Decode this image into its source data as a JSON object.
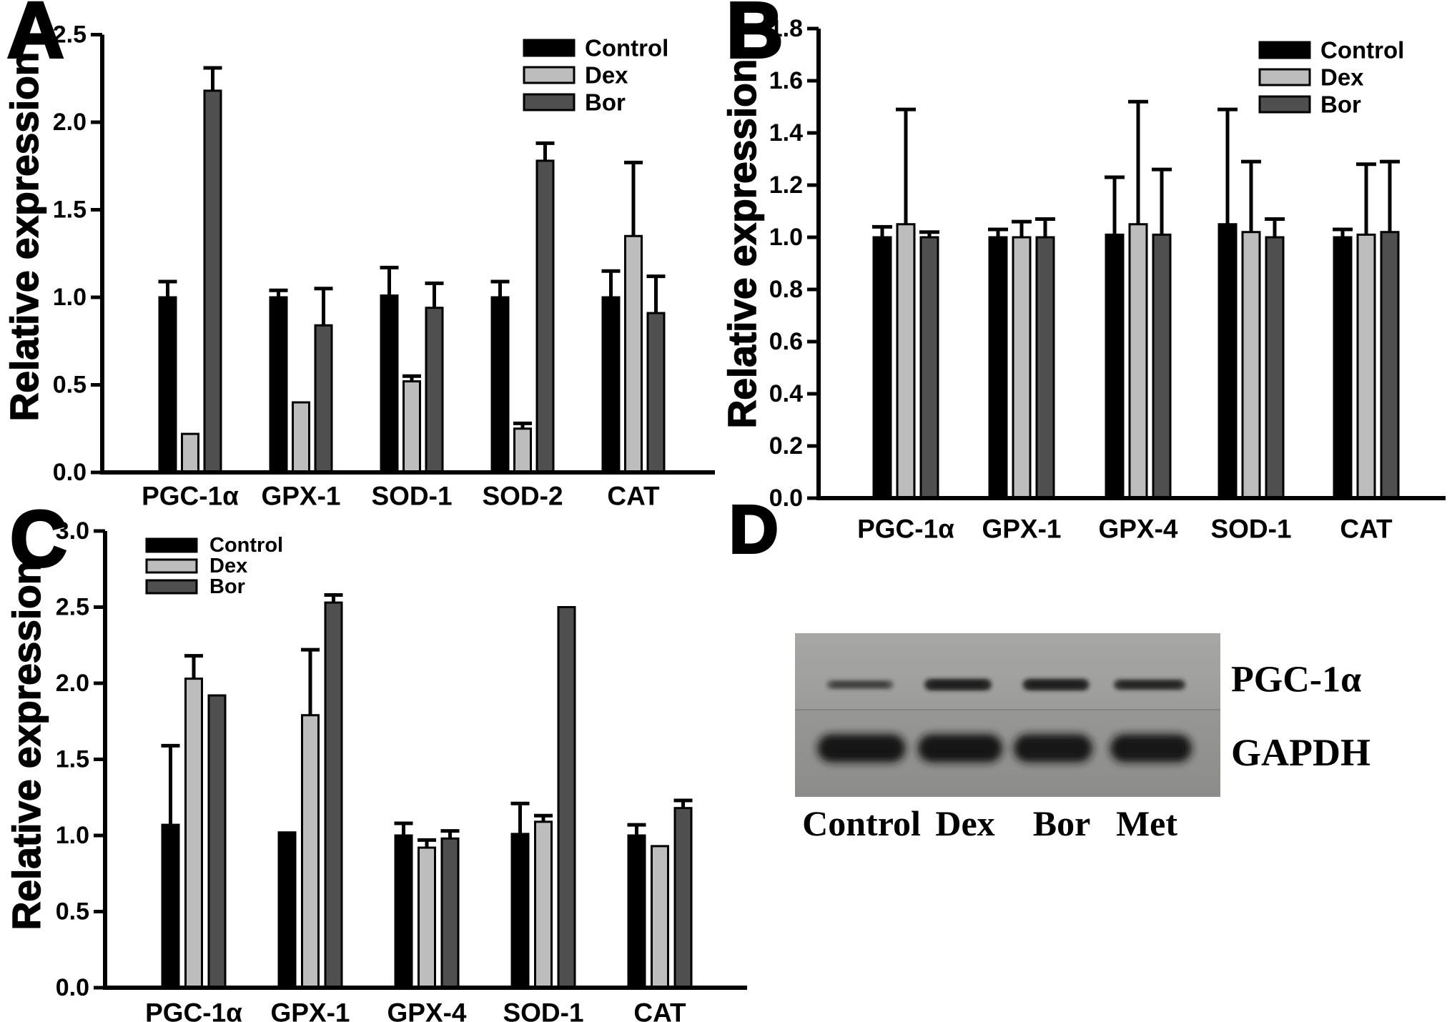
{
  "figure": {
    "panels": [
      {
        "label": "A"
      },
      {
        "label": "B"
      },
      {
        "label": "C"
      },
      {
        "label": "D"
      }
    ],
    "series_colors": {
      "Control": "#000000",
      "Dex": "#bdbdbd",
      "Bor": "#4f4f4f"
    }
  },
  "chart_data": [
    {
      "panel": "A",
      "type": "bar",
      "title": "",
      "xlabel": "",
      "ylabel": "Relative expression",
      "ylim": [
        0,
        2.5
      ],
      "ytick_step": 0.5,
      "grid": false,
      "legend_position": "top-right",
      "categories": [
        "PGC-1α",
        "GPX-1",
        "SOD-1",
        "SOD-2",
        "CAT"
      ],
      "series": [
        {
          "name": "Control",
          "color": "#000000",
          "values": [
            1.0,
            1.0,
            1.01,
            1.0,
            1.0
          ],
          "errors": [
            0.09,
            0.04,
            0.16,
            0.09,
            0.15
          ]
        },
        {
          "name": "Dex",
          "color": "#bdbdbd",
          "values": [
            0.22,
            0.4,
            0.52,
            0.25,
            1.35
          ],
          "errors": [
            0,
            0,
            0.03,
            0.03,
            0.42
          ]
        },
        {
          "name": "Bor",
          "color": "#4f4f4f",
          "values": [
            2.18,
            0.84,
            0.94,
            1.78,
            0.91
          ],
          "errors": [
            0.13,
            0.21,
            0.14,
            0.1,
            0.21
          ]
        }
      ]
    },
    {
      "panel": "B",
      "type": "bar",
      "title": "",
      "xlabel": "",
      "ylabel": "Relative expression",
      "ylim": [
        0,
        1.8
      ],
      "ytick_step": 0.2,
      "grid": false,
      "legend_position": "top-right",
      "categories": [
        "PGC-1α",
        "GPX-1",
        "GPX-4",
        "SOD-1",
        "CAT"
      ],
      "series": [
        {
          "name": "Control",
          "color": "#000000",
          "values": [
            1.0,
            1.0,
            1.01,
            1.05,
            1.0
          ],
          "errors": [
            0.04,
            0.03,
            0.22,
            0.44,
            0.03
          ]
        },
        {
          "name": "Dex",
          "color": "#bdbdbd",
          "values": [
            1.05,
            1.0,
            1.05,
            1.02,
            1.01
          ],
          "errors": [
            0.44,
            0.06,
            0.47,
            0.27,
            0.27
          ]
        },
        {
          "name": "Bor",
          "color": "#4f4f4f",
          "values": [
            1.0,
            1.0,
            1.01,
            1.0,
            1.02
          ],
          "errors": [
            0.02,
            0.07,
            0.25,
            0.07,
            0.27
          ]
        }
      ]
    },
    {
      "panel": "C",
      "type": "bar",
      "title": "",
      "xlabel": "",
      "ylabel": "Relative expression",
      "ylim": [
        0,
        3.0
      ],
      "ytick_step": 0.5,
      "grid": false,
      "legend_position": "top-left",
      "categories": [
        "PGC-1α",
        "GPX-1",
        "GPX-4",
        "SOD-1",
        "CAT"
      ],
      "series": [
        {
          "name": "Control",
          "color": "#000000",
          "values": [
            1.07,
            1.02,
            1.0,
            1.01,
            1.0
          ],
          "errors": [
            0.52,
            0,
            0.08,
            0.2,
            0.07
          ]
        },
        {
          "name": "Dex",
          "color": "#bdbdbd",
          "values": [
            2.03,
            1.79,
            0.92,
            1.09,
            0.93
          ],
          "errors": [
            0.15,
            0.43,
            0.05,
            0.04,
            0
          ]
        },
        {
          "name": "Bor",
          "color": "#4f4f4f",
          "values": [
            1.92,
            2.53,
            0.98,
            2.5,
            1.18
          ],
          "errors": [
            0,
            0.05,
            0.05,
            0,
            0.05
          ]
        }
      ]
    }
  ],
  "blot": {
    "panel": "D",
    "lanes": [
      "Control",
      "Dex",
      "Bor",
      "Met"
    ],
    "rows": [
      {
        "label": "PGC-1α",
        "band_intensities": [
          0.5,
          0.82,
          0.82,
          0.74
        ]
      },
      {
        "label": "GAPDH",
        "band_intensities": [
          0.95,
          0.95,
          0.93,
          0.93
        ]
      }
    ],
    "membrane_color": "#979795",
    "band_color": "#141414"
  }
}
